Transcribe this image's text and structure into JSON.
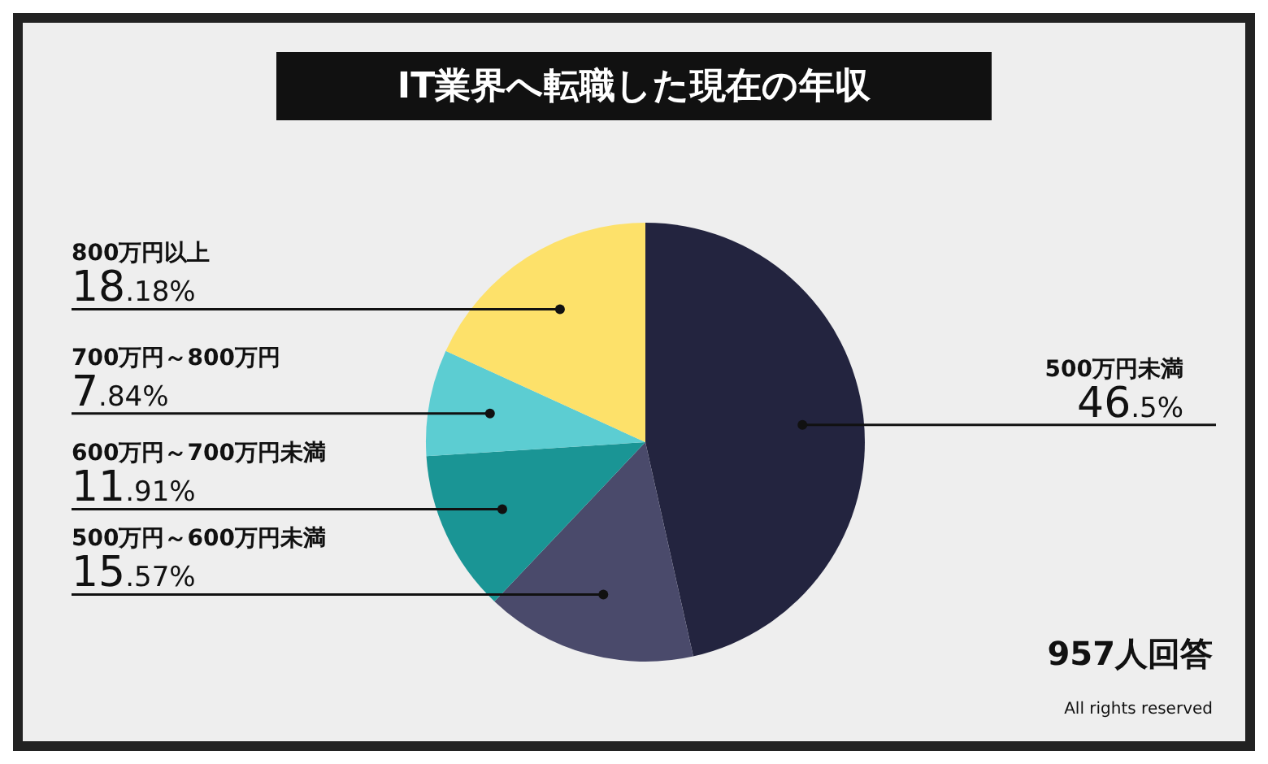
{
  "chart_data": {
    "type": "pie",
    "title": "IT業界へ転職した現在の年収",
    "categories": [
      "500万円未満",
      "500万円～600万円未満",
      "600万円～700万円未満",
      "700万円～800万円",
      "800万円以上"
    ],
    "values": [
      46.5,
      15.57,
      11.91,
      7.84,
      18.18
    ],
    "value_labels": [
      "46.5%",
      "15.57%",
      "11.91%",
      "7.84%",
      "18.18%"
    ],
    "colors": [
      "#23243f",
      "#4a4a6b",
      "#1a9595",
      "#5ccdd2",
      "#fde16a"
    ],
    "legend": false,
    "annotations": [
      "957人回答",
      "All rights reserved"
    ]
  }
}
